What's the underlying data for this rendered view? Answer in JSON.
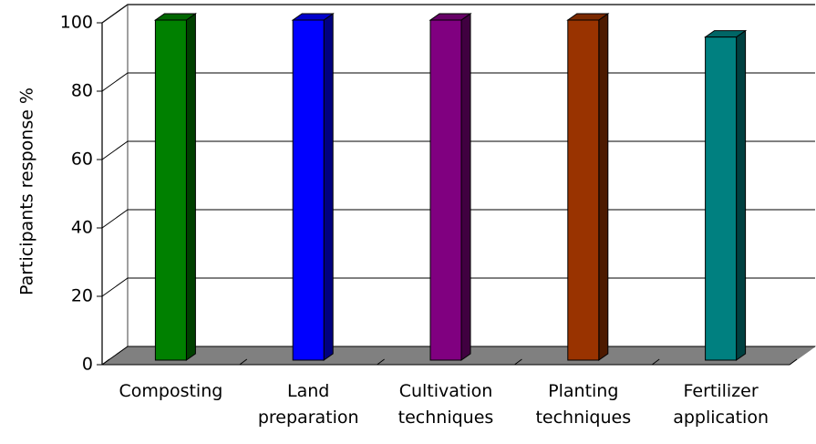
{
  "chart_data": {
    "type": "bar3d",
    "y_label": "Participants response %",
    "categories": [
      "Composting",
      "Land preparation",
      "Cultivation techniques",
      "Planting techniques",
      "Fertilizer application"
    ],
    "values": [
      100,
      100,
      100,
      100,
      95
    ],
    "colors": [
      "#008000",
      "#0000ff",
      "#800080",
      "#993300",
      "#008080"
    ],
    "ylim": [
      0,
      100
    ],
    "yticks": [
      0,
      20,
      40,
      60,
      80,
      100
    ],
    "grid": true
  }
}
